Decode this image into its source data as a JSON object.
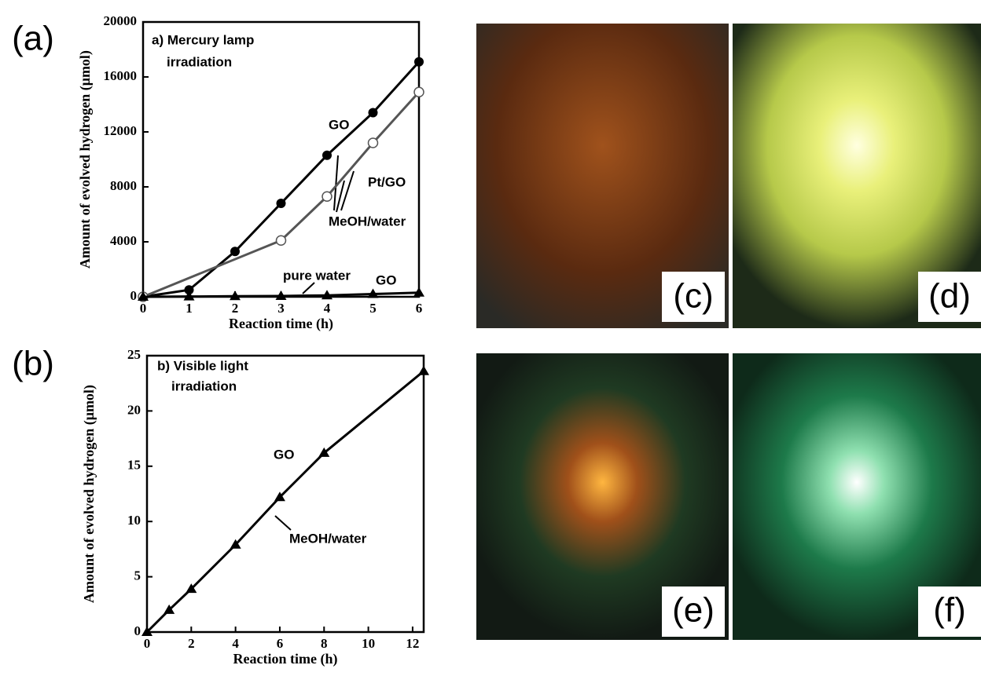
{
  "panel_labels": [
    "(a)",
    "(b)"
  ],
  "photos": {
    "labels": [
      "(c)",
      "(d)",
      "(e)",
      "(f)"
    ]
  },
  "chart_data": [
    {
      "type": "line",
      "xlabel": "Reaction time  (h)",
      "ylabel": "Amount of evolved hydrogen  (μmol)",
      "xlim": [
        0,
        6
      ],
      "xticks": [
        0,
        1,
        2,
        3,
        4,
        5,
        6
      ],
      "ylim": [
        0,
        20000
      ],
      "yticks": [
        0,
        4000,
        8000,
        12000,
        16000,
        20000
      ],
      "annotations": [
        "a) Mercury lamp",
        "irradiation",
        "GO",
        "Pt/GO",
        "MeOH/water",
        "pure water",
        "GO"
      ],
      "series": [
        {
          "color": "#000000",
          "marker": "circle",
          "x": [
            0,
            1,
            2,
            3,
            4,
            5,
            6
          ],
          "values": [
            0,
            500,
            3300,
            6800,
            10300,
            13400,
            17100
          ]
        },
        {
          "color": "#555555",
          "marker": "open-circle",
          "x": [
            0,
            3,
            4,
            5,
            6
          ],
          "values": [
            0,
            4100,
            7300,
            11200,
            14900
          ]
        },
        {
          "color": "#000000",
          "marker": "triangle",
          "x": [
            0,
            1,
            2,
            3,
            4,
            5,
            6
          ],
          "values": [
            0,
            20,
            40,
            60,
            100,
            200,
            300
          ]
        }
      ]
    },
    {
      "type": "line",
      "xlabel": "Reaction time  (h)",
      "ylabel": "Amount of evolved hydrogen  (μmol)",
      "xlim": [
        0,
        12.5
      ],
      "xticks": [
        0,
        2,
        4,
        6,
        8,
        10,
        12
      ],
      "ylim": [
        0,
        25
      ],
      "yticks": [
        0,
        5,
        10,
        15,
        20,
        25
      ],
      "annotations": [
        "b) Visible light",
        "irradiation",
        "GO",
        "MeOH/water"
      ],
      "series": [
        {
          "color": "#000000",
          "marker": "triangle",
          "x": [
            0,
            1,
            2,
            4,
            6,
            8,
            12.5
          ],
          "values": [
            0,
            2,
            3.9,
            7.9,
            12.2,
            16.2,
            23.6
          ]
        }
      ]
    }
  ]
}
